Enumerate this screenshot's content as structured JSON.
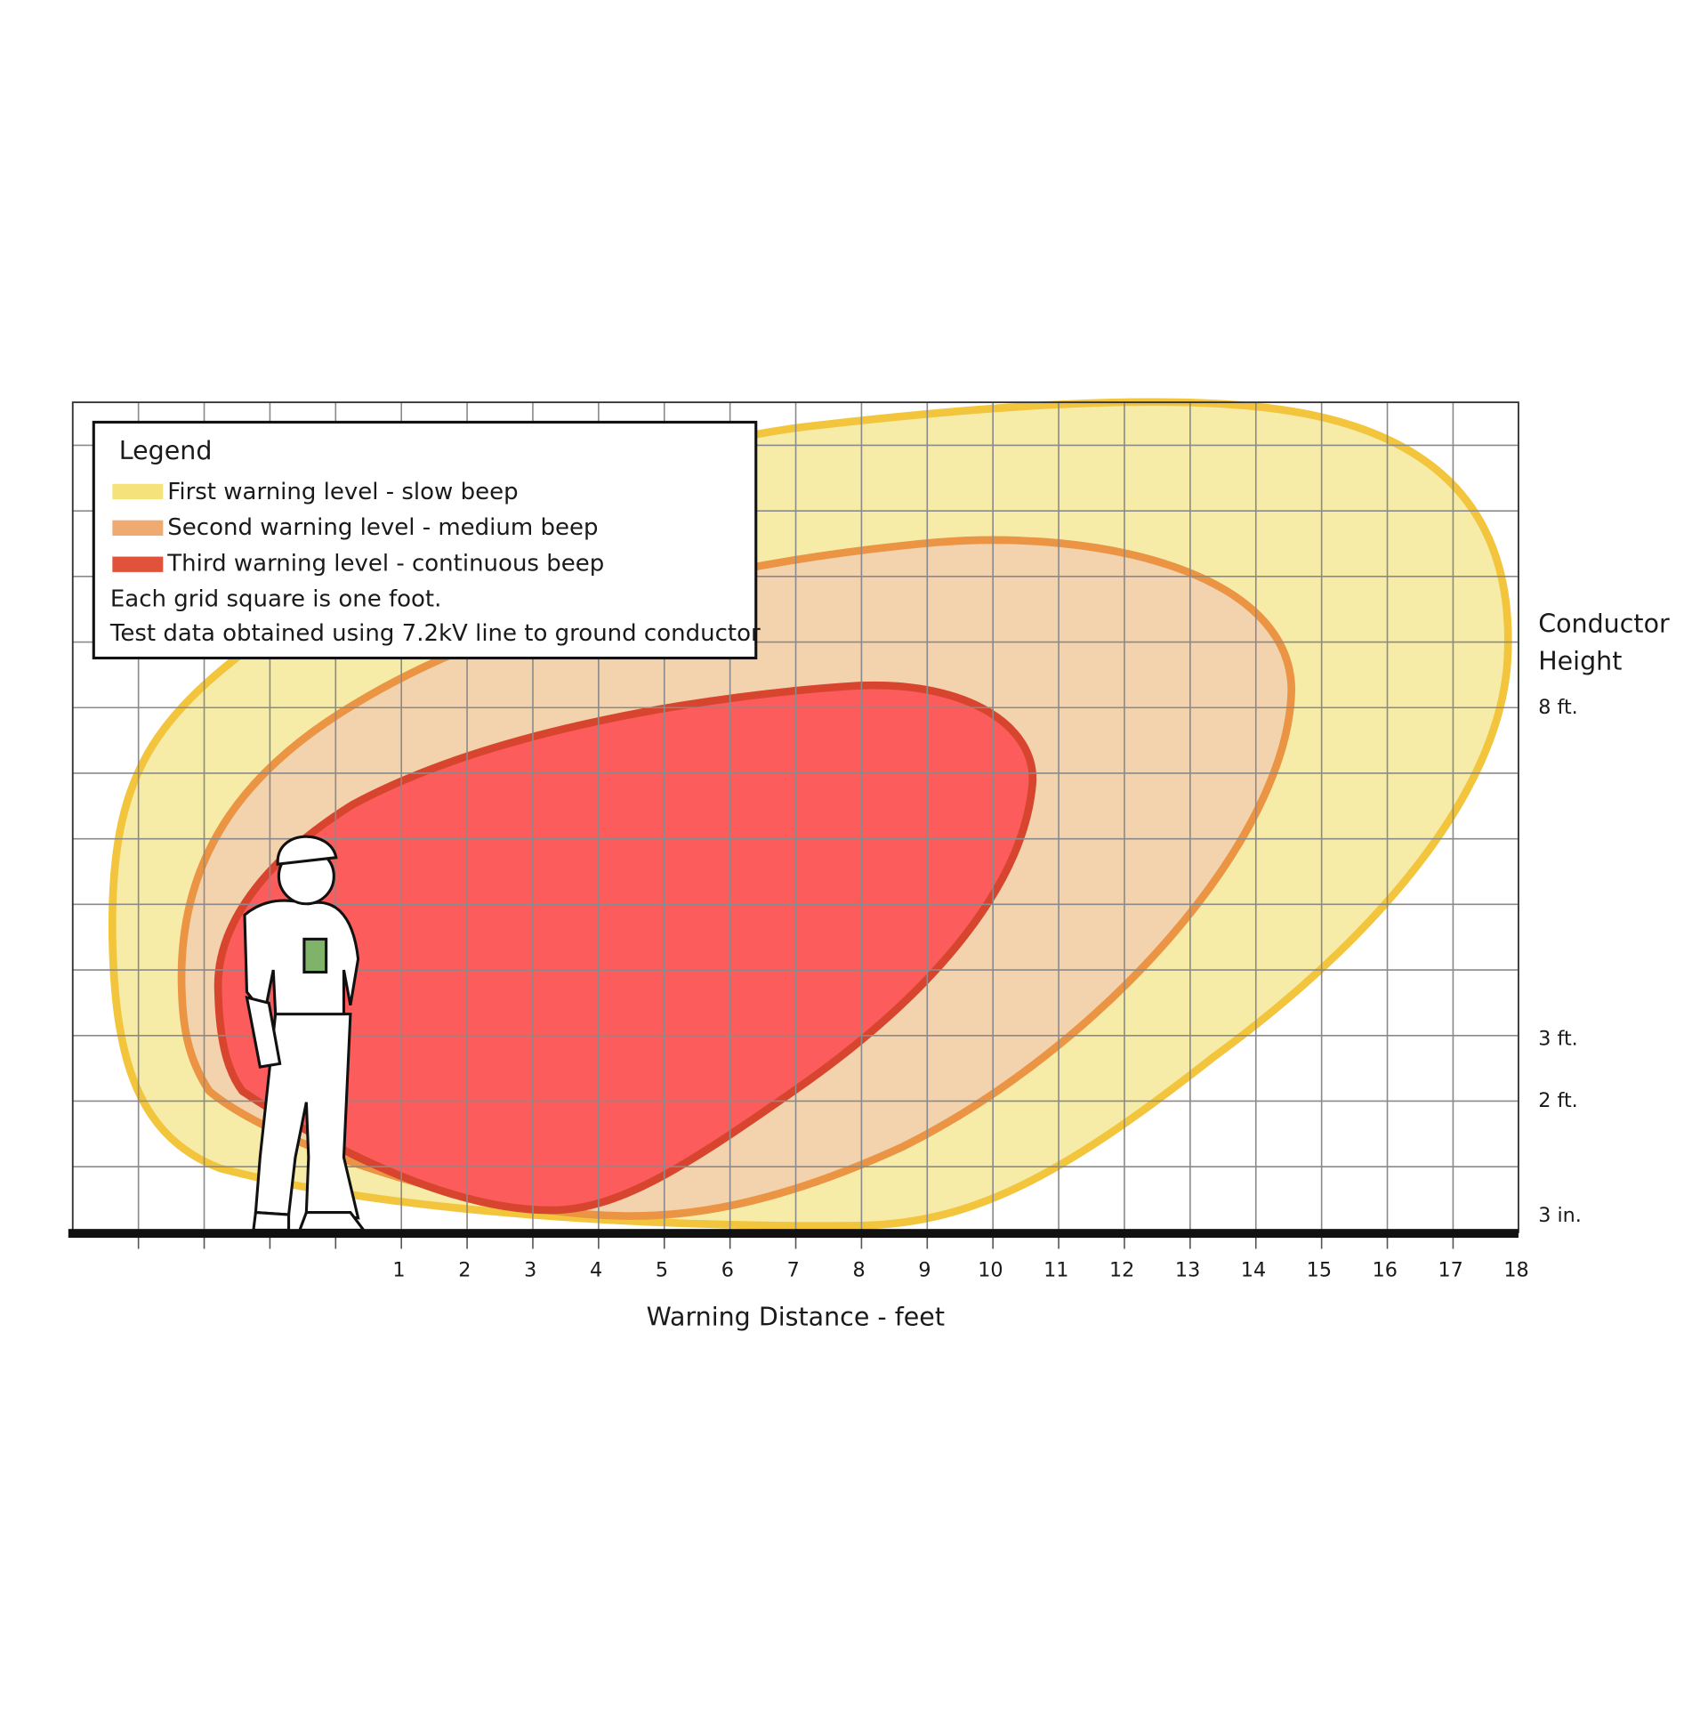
{
  "legend": {
    "title": "Legend",
    "items": [
      "First warning level - slow beep",
      "Second warning level - medium beep",
      "Third warning level - continuous beep"
    ],
    "notes": [
      "Each grid square is one foot.",
      "Test data obtained using 7.2kV line to ground conductor"
    ]
  },
  "x_axis": {
    "title": "Warning Distance - feet",
    "ticks": [
      "1",
      "2",
      "3",
      "4",
      "5",
      "6",
      "7",
      "8",
      "9",
      "10",
      "11",
      "12",
      "13",
      "14",
      "15",
      "16",
      "17",
      "18"
    ]
  },
  "y_axis": {
    "title": [
      "Conductor",
      "Height"
    ],
    "ticks": [
      "8 ft.",
      "3 ft.",
      "2 ft.",
      "3 in."
    ]
  }
}
